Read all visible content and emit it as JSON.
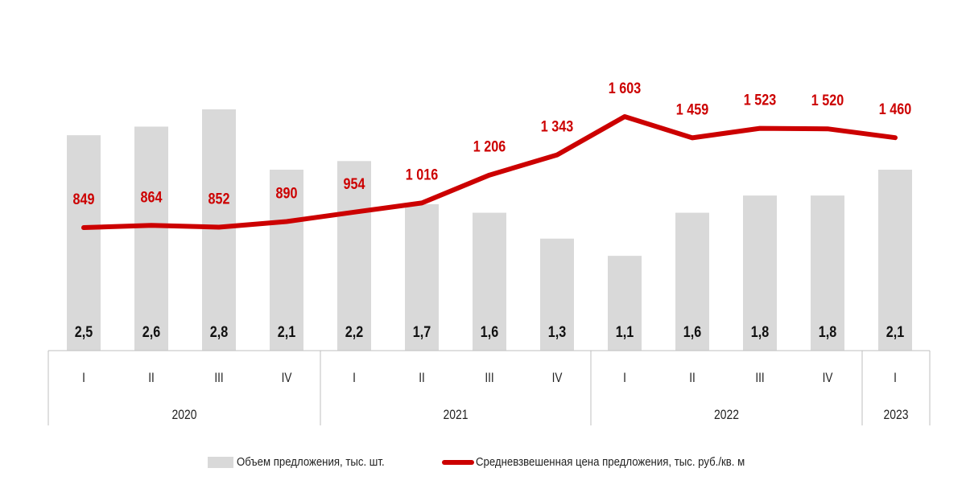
{
  "chart_data": {
    "type": "bar+line",
    "title": "",
    "categories": [
      "I",
      "II",
      "III",
      "IV",
      "I",
      "II",
      "III",
      "IV",
      "I",
      "II",
      "III",
      "IV",
      "I"
    ],
    "year_groups": [
      {
        "label": "2020",
        "span": 4
      },
      {
        "label": "2021",
        "span": 4
      },
      {
        "label": "2022",
        "span": 4
      },
      {
        "label": "2023",
        "span": 1
      }
    ],
    "series": [
      {
        "name": "Объем предложения, тыс. шт.",
        "type": "bar",
        "color": "#d9d9d9",
        "values": [
          2.5,
          2.6,
          2.8,
          2.1,
          2.2,
          1.7,
          1.6,
          1.3,
          1.1,
          1.6,
          1.8,
          1.8,
          2.1
        ],
        "labels": [
          "2,5",
          "2,6",
          "2,8",
          "2,1",
          "2,2",
          "1,7",
          "1,6",
          "1,3",
          "1,1",
          "1,6",
          "1,8",
          "1,8",
          "2,1"
        ]
      },
      {
        "name": "Средневзвешенная цена предложения, тыс. руб./кв. м",
        "type": "line",
        "color": "#cc0000",
        "values": [
          849,
          864,
          852,
          890,
          954,
          1016,
          1206,
          1343,
          1603,
          1459,
          1523,
          1520,
          1460
        ],
        "labels": [
          "849",
          "864",
          "852",
          "890",
          "954",
          "1 016",
          "1 206",
          "1 343",
          "1 603",
          "1 459",
          "1 523",
          "1 520",
          "1 460"
        ]
      }
    ],
    "legend_position": "bottom",
    "grid": false
  },
  "legend": {
    "bar_label": "Объем предложения, тыс. шт.",
    "line_label": "Средневзвешенная цена предложения, тыс. руб./кв. м"
  }
}
